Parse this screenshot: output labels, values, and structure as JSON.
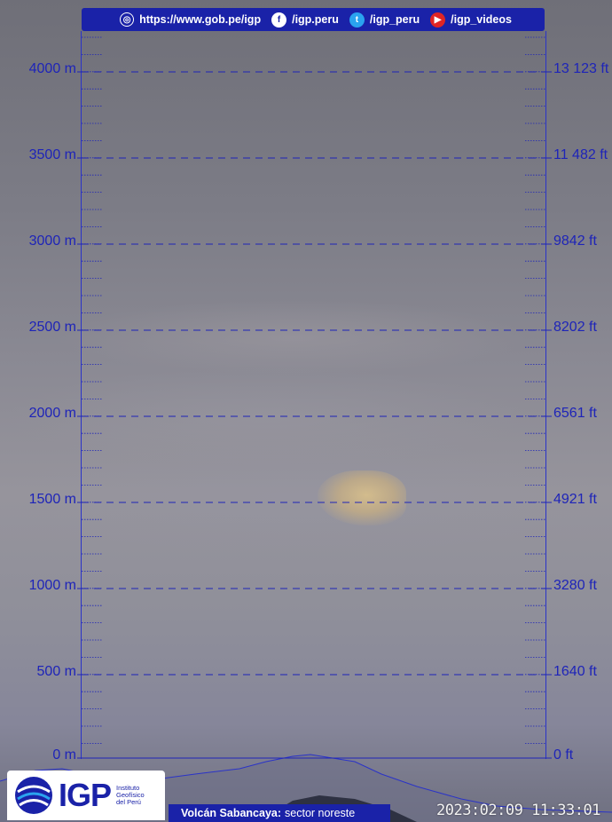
{
  "header": {
    "website": "https://www.gob.pe/igp",
    "facebook": "/igp.peru",
    "twitter": "/igp_peru",
    "youtube": "/igp_videos"
  },
  "scale_meters": [
    "4000 m",
    "3500 m",
    "3000 m",
    "2500 m",
    "2000 m",
    "1500 m",
    "1000 m",
    "500 m",
    "0 m"
  ],
  "scale_feet": [
    "13 123 ft",
    "11 482 ft",
    "9842 ft",
    "8202 ft",
    "6561 ft",
    "4921 ft",
    "3280 ft",
    "1640 ft",
    "0 ft"
  ],
  "logo": {
    "name": "IGP",
    "subtitle_1": "Instituto",
    "subtitle_2": "Geofísico",
    "subtitle_3": "del Perú"
  },
  "caption": {
    "volcano": "Volcán Sabancaya:",
    "sector": "sector noreste"
  },
  "timestamp": "2023:02:09 11:33:01",
  "colors": {
    "scale_blue": "#1e24b8",
    "bar_blue": "#1a22a8"
  }
}
